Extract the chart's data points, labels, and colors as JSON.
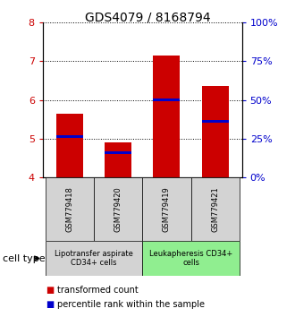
{
  "title": "GDS4079 / 8168794",
  "samples": [
    "GSM779418",
    "GSM779420",
    "GSM779419",
    "GSM779421"
  ],
  "transformed_counts": [
    5.65,
    4.9,
    7.15,
    6.35
  ],
  "percentile_ranks": [
    5.05,
    4.65,
    6.0,
    5.45
  ],
  "ylim": [
    4.0,
    8.0
  ],
  "yticks_left": [
    4,
    5,
    6,
    7,
    8
  ],
  "bar_color": "#cc0000",
  "percentile_color": "#0000cc",
  "bar_bottom": 4.0,
  "bar_width": 0.55,
  "group_labels": [
    "Lipotransfer aspirate\nCD34+ cells",
    "Leukapheresis CD34+\ncells"
  ],
  "group_colors": [
    "#d3d3d3",
    "#90ee90"
  ],
  "cell_type_label": "cell type",
  "legend_red": "transformed count",
  "legend_blue": "percentile rank within the sample",
  "title_fontsize": 10,
  "tick_fontsize": 8,
  "sample_fontsize": 6,
  "group_fontsize": 6,
  "legend_fontsize": 7
}
